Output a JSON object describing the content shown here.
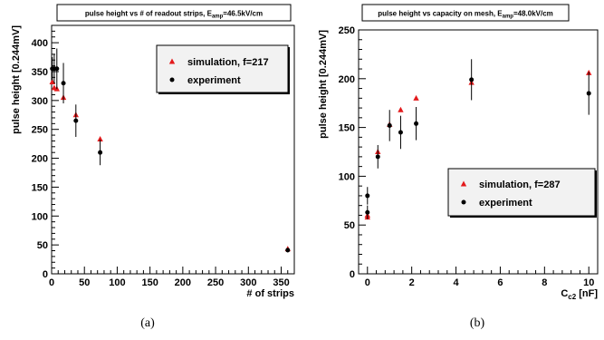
{
  "chart_data": [
    {
      "type": "scatter",
      "title": "pulse height vs # of readout strips, E",
      "title_sub": "amp",
      "title_suffix": "=46.5kV/cm",
      "xlabel": "# of strips",
      "ylabel": "pulse height [0.244mV]",
      "xlim": [
        0,
        370
      ],
      "ylim": [
        0,
        430
      ],
      "xticks": [
        0,
        50,
        100,
        150,
        200,
        250,
        300,
        350
      ],
      "yticks": [
        0,
        50,
        100,
        150,
        200,
        250,
        300,
        350,
        400
      ],
      "grid": false,
      "legend_position": "top-right",
      "caption": "(a)",
      "series": [
        {
          "name": "simulation, f=217",
          "color": "#e31a1c",
          "marker": "triangle",
          "points": [
            [
              1,
              332
            ],
            [
              4,
              322
            ],
            [
              8,
              320
            ],
            [
              18,
              305
            ],
            [
              37,
              275
            ],
            [
              74,
              233
            ],
            [
              360,
              43
            ]
          ]
        },
        {
          "name": "experiment",
          "color": "#000000",
          "marker": "circle",
          "points": [
            {
              "x": 1,
              "y": 355,
              "err": 20
            },
            {
              "x": 4,
              "y": 355,
              "err": 25
            },
            {
              "x": 8,
              "y": 355,
              "err": 35
            },
            {
              "x": 18,
              "y": 330,
              "err": 35
            },
            {
              "x": 37,
              "y": 265,
              "err": 28
            },
            {
              "x": 74,
              "y": 210,
              "err": 22
            },
            {
              "x": 360,
              "y": 41,
              "err": 4
            }
          ]
        }
      ]
    },
    {
      "type": "scatter",
      "title": "pulse height vs capacity on mesh, E",
      "title_sub": "amp",
      "title_suffix": "=48.0kV/cm",
      "xlabel": "C",
      "xlabel_sub": "c2",
      "xlabel_suffix": " [nF]",
      "ylabel": "pulse height [0.244mV]",
      "xlim": [
        -0.4,
        10.4
      ],
      "ylim": [
        0,
        250
      ],
      "xticks": [
        0,
        2,
        4,
        6,
        8,
        10
      ],
      "yticks": [
        0,
        50,
        100,
        150,
        200,
        250
      ],
      "grid": false,
      "legend_position": "bottom-right",
      "caption": "(b)",
      "series": [
        {
          "name": "simulation, f=287",
          "color": "#e31a1c",
          "marker": "triangle",
          "points": [
            [
              0,
              58
            ],
            [
              0,
              60
            ],
            [
              0.47,
              125
            ],
            [
              1,
              153
            ],
            [
              1.5,
              168
            ],
            [
              2.2,
              180
            ],
            [
              4.7,
              196
            ],
            [
              10,
              206
            ]
          ]
        },
        {
          "name": "experiment",
          "color": "#000000",
          "marker": "circle",
          "points": [
            {
              "x": 0,
              "y": 80,
              "err": 9
            },
            {
              "x": 0,
              "y": 63,
              "err": 7
            },
            {
              "x": 0.47,
              "y": 120,
              "err": 12
            },
            {
              "x": 1,
              "y": 152,
              "err": 16
            },
            {
              "x": 1.5,
              "y": 145,
              "err": 17
            },
            {
              "x": 2.2,
              "y": 154,
              "err": 17
            },
            {
              "x": 4.7,
              "y": 199,
              "err": 21
            },
            {
              "x": 10,
              "y": 185,
              "err": 22
            }
          ]
        }
      ]
    }
  ]
}
